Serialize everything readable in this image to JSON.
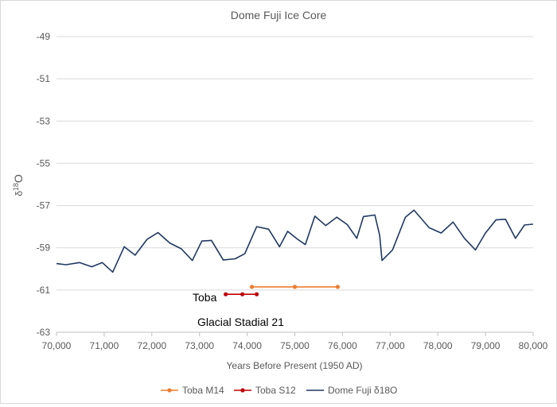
{
  "chart_data": {
    "type": "line",
    "title": "Dome Fuji Ice Core",
    "xlabel": "Years Before Present (1950 AD)",
    "ylabel_base": "δ",
    "ylabel_sup": "18",
    "ylabel_tail": "O",
    "xlim": [
      70000,
      80000
    ],
    "ylim": [
      -63,
      -49
    ],
    "x_ticks": [
      70000,
      71000,
      72000,
      73000,
      74000,
      75000,
      76000,
      77000,
      78000,
      79000,
      80000
    ],
    "x_tick_labels": [
      "70,000",
      "71,000",
      "72,000",
      "73,000",
      "74,000",
      "75,000",
      "76,000",
      "77,000",
      "78,000",
      "79,000",
      "80,000"
    ],
    "y_ticks": [
      -49,
      -51,
      -53,
      -55,
      -57,
      -59,
      -61,
      -63
    ],
    "y_tick_labels": [
      "-49",
      "-51",
      "-53",
      "-55",
      "-57",
      "-59",
      "-61",
      "-63"
    ],
    "grid": "horizontal",
    "legend_position": "bottom",
    "series": [
      {
        "name": "Toba M14",
        "color": "#ed7d31",
        "marker": "circle",
        "x": [
          74100,
          75000,
          75900
        ],
        "y": [
          -60.85,
          -60.85,
          -60.85
        ]
      },
      {
        "name": "Toba S12",
        "color": "#c00000",
        "marker": "circle",
        "x": [
          73550,
          73900,
          74200
        ],
        "y": [
          -61.2,
          -61.2,
          -61.2
        ]
      },
      {
        "name": "Dome Fuji δ18O",
        "color": "#1f3864",
        "marker": "none",
        "x": [
          70000,
          70200,
          70480,
          70740,
          70960,
          71180,
          71420,
          71650,
          71900,
          72130,
          72380,
          72620,
          72850,
          73050,
          73250,
          73500,
          73750,
          73950,
          74200,
          74450,
          74680,
          74850,
          75050,
          75220,
          75420,
          75650,
          75880,
          76100,
          76300,
          76440,
          76680,
          76780,
          76830,
          77050,
          77320,
          77500,
          77820,
          78070,
          78320,
          78560,
          78790,
          79000,
          79220,
          79420,
          79630,
          79820,
          80000
        ],
        "y": [
          -59.75,
          -59.8,
          -59.7,
          -59.9,
          -59.7,
          -60.15,
          -58.95,
          -59.35,
          -58.6,
          -58.28,
          -58.78,
          -59.05,
          -59.6,
          -58.68,
          -58.65,
          -59.58,
          -59.52,
          -59.28,
          -58.0,
          -58.12,
          -58.95,
          -58.22,
          -58.58,
          -58.85,
          -57.5,
          -57.95,
          -57.55,
          -57.9,
          -58.55,
          -57.52,
          -57.45,
          -58.4,
          -59.6,
          -59.1,
          -57.55,
          -57.22,
          -58.05,
          -58.3,
          -57.78,
          -58.55,
          -59.1,
          -58.3,
          -57.68,
          -57.65,
          -58.55,
          -57.92,
          -57.88
        ]
      }
    ],
    "annotations": [
      "Toba",
      "Glacial Stadial 21"
    ]
  }
}
